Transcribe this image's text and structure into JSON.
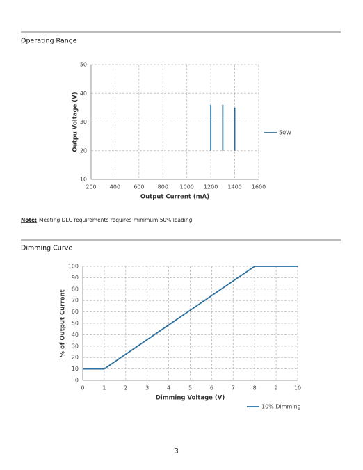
{
  "chart_data": [
    {
      "type": "line",
      "title": "Operating Range",
      "x_label": "Output Current (mA)",
      "y_label": "Outpu Voltage (V)",
      "series": [
        {
          "name": "50W",
          "color": "#2a6fa0",
          "x": [
            1200,
            1200,
            null,
            1300,
            1300,
            null,
            1400,
            1400
          ],
          "values": [
            20,
            36,
            null,
            20,
            36,
            null,
            20,
            35
          ]
        }
      ],
      "xlim": [
        200,
        1600
      ],
      "xticks": [
        200,
        400,
        600,
        800,
        1000,
        1200,
        1400,
        1600
      ],
      "ylim": [
        10,
        50
      ],
      "yticks": [
        10,
        20,
        30,
        40,
        50
      ],
      "grid": true,
      "legend": "right"
    },
    {
      "type": "line",
      "title": "Dimming Curve",
      "x_label": "Dimming Voltage (V)",
      "y_label": "% of Output Current",
      "series": [
        {
          "name": "10% Dimming",
          "color": "#2a6fa0",
          "x": [
            0,
            1,
            8,
            10
          ],
          "values": [
            10,
            10,
            100,
            100
          ]
        }
      ],
      "xlim": [
        0,
        10
      ],
      "xticks": [
        0,
        1,
        2,
        3,
        4,
        5,
        6,
        7,
        8,
        9,
        10
      ],
      "ylim": [
        0,
        100
      ],
      "yticks": [
        0,
        10,
        20,
        30,
        40,
        50,
        60,
        70,
        80,
        90,
        100
      ],
      "grid": true,
      "legend": "bottom-right"
    }
  ],
  "note": {
    "label": "Note:",
    "text": "Meeting DLC requirements requires minimum 50% loading."
  },
  "page_number": "3"
}
